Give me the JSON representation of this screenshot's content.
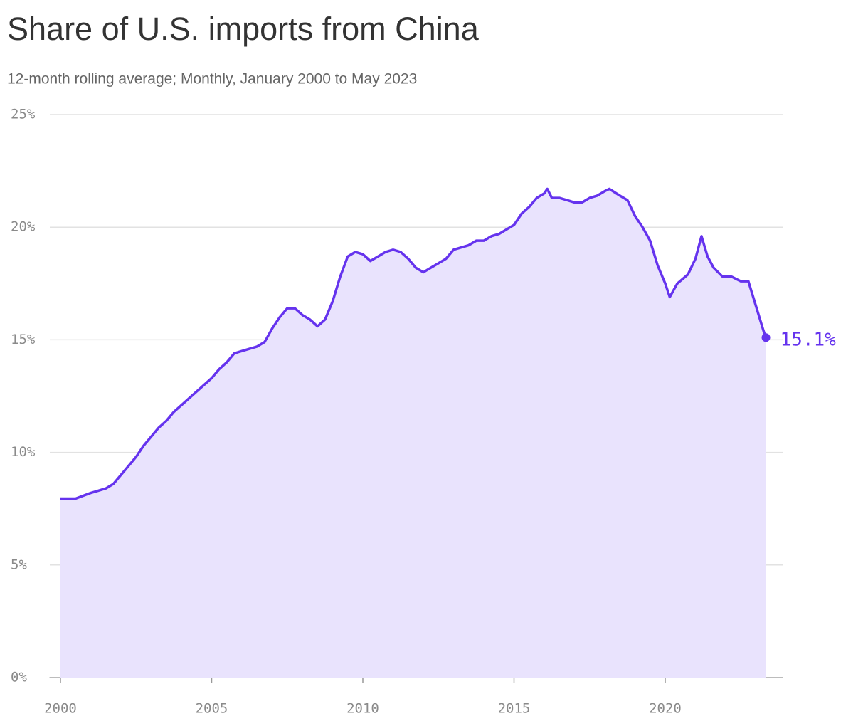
{
  "chart_data": {
    "type": "area-line",
    "title": "Share of U.S. imports from China",
    "subtitle": "12-month rolling average; Monthly, January 2000 to May 2023",
    "x": [
      2000.0,
      2000.5,
      2001.0,
      2001.25,
      2001.5,
      2001.75,
      2002.0,
      2002.25,
      2002.5,
      2002.75,
      2003.0,
      2003.25,
      2003.5,
      2003.75,
      2004.0,
      2004.25,
      2004.5,
      2004.75,
      2005.0,
      2005.25,
      2005.5,
      2005.75,
      2006.0,
      2006.25,
      2006.5,
      2006.75,
      2007.0,
      2007.25,
      2007.5,
      2007.75,
      2008.0,
      2008.25,
      2008.5,
      2008.75,
      2009.0,
      2009.25,
      2009.5,
      2009.75,
      2010.0,
      2010.25,
      2010.5,
      2010.75,
      2011.0,
      2011.25,
      2011.5,
      2011.75,
      2012.0,
      2012.25,
      2012.5,
      2012.75,
      2013.0,
      2013.25,
      2013.5,
      2013.75,
      2014.0,
      2014.25,
      2014.5,
      2014.75,
      2015.0,
      2015.25,
      2015.5,
      2015.75,
      2016.0,
      2016.1,
      2016.25,
      2016.5,
      2016.75,
      2017.0,
      2017.25,
      2017.5,
      2017.75,
      2018.0,
      2018.15,
      2018.5,
      2018.75,
      2019.0,
      2019.25,
      2019.5,
      2019.75,
      2020.0,
      2020.15,
      2020.4,
      2020.75,
      2021.0,
      2021.2,
      2021.4,
      2021.6,
      2021.9,
      2022.2,
      2022.5,
      2022.75,
      2023.0,
      2023.25,
      2023.33
    ],
    "series": [
      {
        "name": "Share of U.S. imports from China",
        "color": "#6533ee",
        "fill": "#e9e3fd",
        "values": [
          7.95,
          7.95,
          8.2,
          8.3,
          8.4,
          8.6,
          9.0,
          9.4,
          9.8,
          10.3,
          10.7,
          11.1,
          11.4,
          11.8,
          12.1,
          12.4,
          12.7,
          13.0,
          13.3,
          13.7,
          14.0,
          14.4,
          14.5,
          14.6,
          14.7,
          14.9,
          15.5,
          16.0,
          16.4,
          16.4,
          16.1,
          15.9,
          15.6,
          15.9,
          16.7,
          17.8,
          18.7,
          18.9,
          18.8,
          18.5,
          18.7,
          18.9,
          19.0,
          18.9,
          18.6,
          18.2,
          18.0,
          18.2,
          18.4,
          18.6,
          19.0,
          19.1,
          19.2,
          19.4,
          19.4,
          19.6,
          19.7,
          19.9,
          20.1,
          20.6,
          20.9,
          21.3,
          21.5,
          21.7,
          21.3,
          21.3,
          21.2,
          21.1,
          21.1,
          21.3,
          21.4,
          21.6,
          21.7,
          21.4,
          21.2,
          20.5,
          20.0,
          19.4,
          18.3,
          17.5,
          16.9,
          17.5,
          17.9,
          18.6,
          19.6,
          18.7,
          18.2,
          17.8,
          17.8,
          17.6,
          17.6,
          16.5,
          15.4,
          15.1
        ]
      }
    ],
    "last_label": "15.1%",
    "xlim": [
      1999.4,
      2023.9
    ],
    "xticks": [
      2000,
      2005,
      2010,
      2015,
      2020
    ],
    "ylim": [
      0,
      25
    ],
    "yticks": [
      {
        "value": 0,
        "label": "0%"
      },
      {
        "value": 5,
        "label": "5%"
      },
      {
        "value": 10,
        "label": "10%"
      },
      {
        "value": 15,
        "label": "15%"
      },
      {
        "value": 20,
        "label": "20%"
      },
      {
        "value": 25,
        "label": "25%"
      }
    ],
    "grid": true
  }
}
